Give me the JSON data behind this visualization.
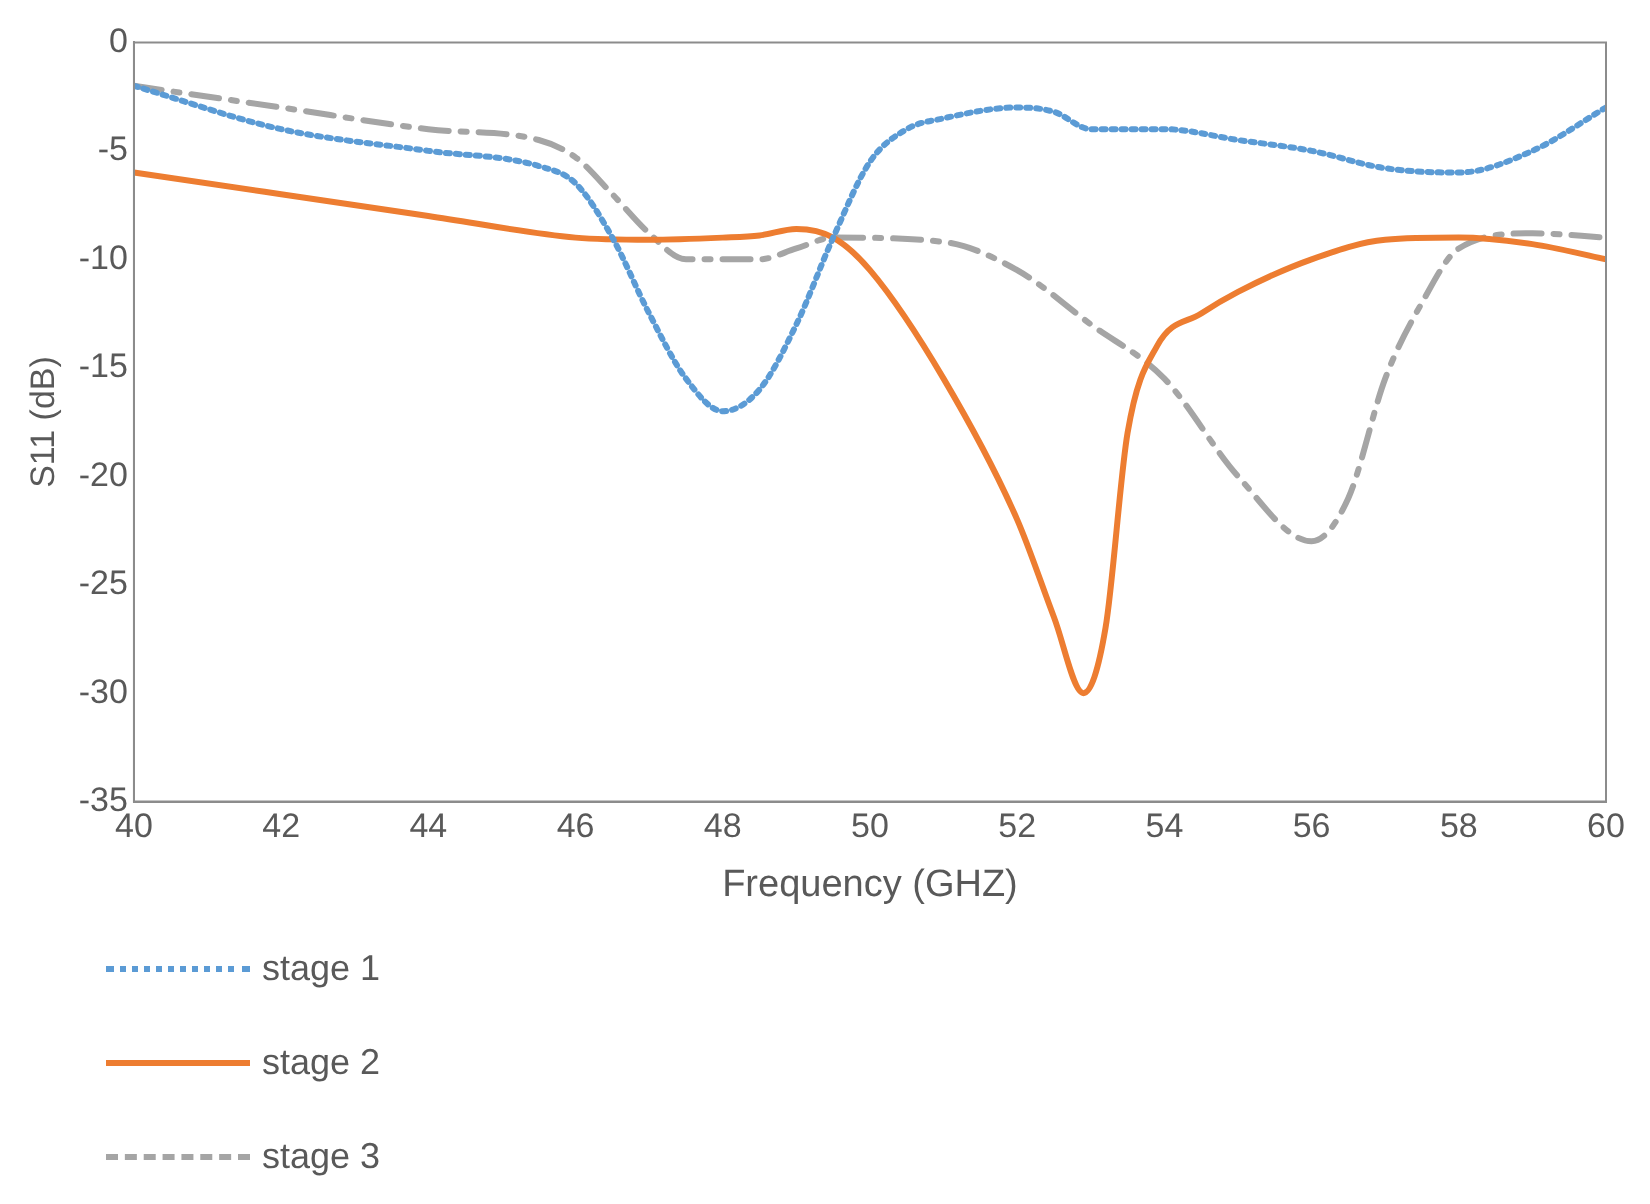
{
  "chart_data": {
    "type": "line",
    "xlabel": "Frequency (GHZ)",
    "ylabel": "S11 (dB)",
    "xlim": [
      40,
      60
    ],
    "xticks": [
      40,
      42,
      44,
      46,
      48,
      50,
      52,
      54,
      56,
      58,
      60
    ],
    "ylim": [
      -35,
      0
    ],
    "yticks": [
      -35,
      -30,
      -25,
      -20,
      -15,
      -10,
      -5,
      0
    ],
    "grid": false,
    "legend": "bottom",
    "marker": "none",
    "series": [
      {
        "name": "stage 1",
        "color": "#5b9bd5",
        "line_style": "dotted",
        "x": [
          40,
          42,
          44,
          45.5,
          46,
          46.5,
          47,
          47.5,
          48,
          48.5,
          49,
          49.5,
          50,
          50.5,
          51,
          52,
          52.5,
          53,
          54,
          55,
          56,
          57,
          58,
          59,
          60
        ],
        "values": [
          -2,
          -4,
          -5,
          -5.7,
          -6.5,
          -9,
          -12.5,
          -15.5,
          -17,
          -16,
          -13,
          -9,
          -5.5,
          -4,
          -3.5,
          -3,
          -3.2,
          -4,
          -4,
          -4.5,
          -5,
          -5.8,
          -6,
          -5,
          -3
        ]
      },
      {
        "name": "stage 2",
        "color": "#ed7d31",
        "line_style": "solid",
        "x": [
          40,
          42,
          44,
          46,
          47,
          48,
          48.5,
          49,
          49.5,
          50,
          51,
          52,
          52.5,
          52.9,
          53.2,
          53.5,
          53.9,
          54.5,
          55,
          56,
          57,
          58,
          59,
          60
        ],
        "values": [
          -6,
          -7,
          -8,
          -9,
          -9.1,
          -9,
          -8.9,
          -8.6,
          -9,
          -10.5,
          -15.5,
          -22,
          -26.5,
          -30,
          -27,
          -18,
          -14,
          -12.5,
          -11.5,
          -10,
          -9.1,
          -9,
          -9.3,
          -10
        ]
      },
      {
        "name": "stage 3",
        "color": "#a5a5a5",
        "line_style": "dashed",
        "x": [
          40,
          42,
          44,
          45.5,
          46,
          46.5,
          47,
          47.5,
          48.5,
          49,
          49.5,
          51,
          52,
          53,
          54,
          55,
          56,
          56.5,
          57,
          57.5,
          58,
          59,
          60
        ],
        "values": [
          -2,
          -3,
          -4,
          -4.5,
          -5.3,
          -7,
          -8.8,
          -10,
          -10,
          -9.5,
          -9,
          -9.2,
          -10.5,
          -13,
          -15.5,
          -20,
          -23,
          -21,
          -15.5,
          -12,
          -9.5,
          -8.8,
          -9
        ]
      }
    ]
  }
}
